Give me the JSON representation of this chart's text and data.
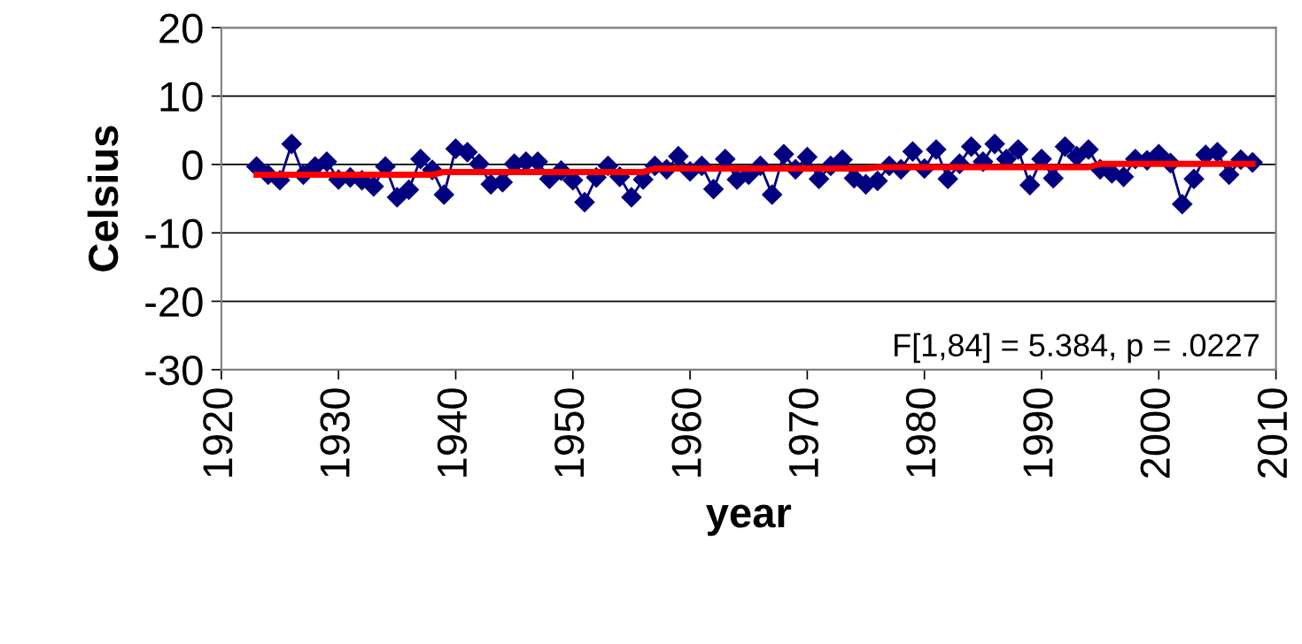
{
  "chart_data": {
    "type": "line",
    "xlabel": "year",
    "ylabel": "Celsius",
    "xlim": [
      1920,
      2010
    ],
    "xticks": [
      1920,
      1930,
      1940,
      1950,
      1960,
      1970,
      1980,
      1990,
      2000,
      2010
    ],
    "ylim": [
      -30,
      20
    ],
    "yticks": [
      -30,
      -20,
      -10,
      0,
      10,
      20
    ],
    "grid": "y",
    "annotations": [
      "F[1,84] = 5.384, p = .0227"
    ],
    "series": [
      {
        "color": "#000080",
        "marker": "diamond",
        "x": [
          1923,
          1924,
          1925,
          1926,
          1927,
          1928,
          1929,
          1930,
          1931,
          1932,
          1933,
          1934,
          1935,
          1936,
          1937,
          1938,
          1939,
          1940,
          1941,
          1942,
          1943,
          1944,
          1945,
          1946,
          1947,
          1948,
          1949,
          1950,
          1951,
          1952,
          1953,
          1954,
          1955,
          1956,
          1957,
          1958,
          1959,
          1960,
          1961,
          1962,
          1963,
          1964,
          1965,
          1966,
          1967,
          1968,
          1969,
          1970,
          1971,
          1972,
          1973,
          1974,
          1975,
          1976,
          1977,
          1978,
          1979,
          1980,
          1981,
          1982,
          1983,
          1984,
          1985,
          1986,
          1987,
          1988,
          1989,
          1990,
          1991,
          1992,
          1993,
          1994,
          1995,
          1996,
          1997,
          1998,
          1999,
          2000,
          2001,
          2002,
          2003,
          2004,
          2005,
          2006,
          2007,
          2008
        ],
        "values": [
          -0.3,
          -1.5,
          -2.3,
          3.0,
          -1.5,
          -0.3,
          0.4,
          -2.2,
          -1.9,
          -2.3,
          -3.2,
          -0.3,
          -4.8,
          -3.7,
          0.8,
          -0.8,
          -4.4,
          2.3,
          1.8,
          0.1,
          -2.9,
          -2.6,
          0.1,
          0.4,
          0.4,
          -2.1,
          -0.9,
          -2.3,
          -5.5,
          -1.9,
          -0.2,
          -1.8,
          -4.8,
          -2.2,
          -0.2,
          -0.7,
          1.2,
          -1.0,
          -0.2,
          -3.6,
          0.8,
          -2.2,
          -1.5,
          -0.2,
          -4.4,
          1.5,
          -0.7,
          1.1,
          -2.1,
          -0.2,
          0.7,
          -2.0,
          -2.9,
          -2.4,
          -0.2,
          -0.7,
          1.9,
          -0.6,
          2.2,
          -2.1,
          0.1,
          2.6,
          0.4,
          3.0,
          0.8,
          2.2,
          -3.0,
          0.8,
          -2.0,
          2.6,
          1.2,
          2.2,
          -0.7,
          -1.3,
          -1.8,
          0.8,
          0.6,
          1.5,
          0.2,
          -5.8,
          -2.1,
          1.4,
          1.8,
          -1.5,
          0.7,
          0.3
        ]
      },
      {
        "color": "#ff0000",
        "marker": "none",
        "x": [
          1923,
          1938,
          1939,
          1956,
          1957,
          1975,
          1976,
          1994,
          1995,
          2008
        ],
        "values": [
          -1.5,
          -1.5,
          -1.1,
          -1.1,
          -0.6,
          -0.6,
          -0.4,
          -0.4,
          0.1,
          0.1
        ]
      }
    ]
  }
}
